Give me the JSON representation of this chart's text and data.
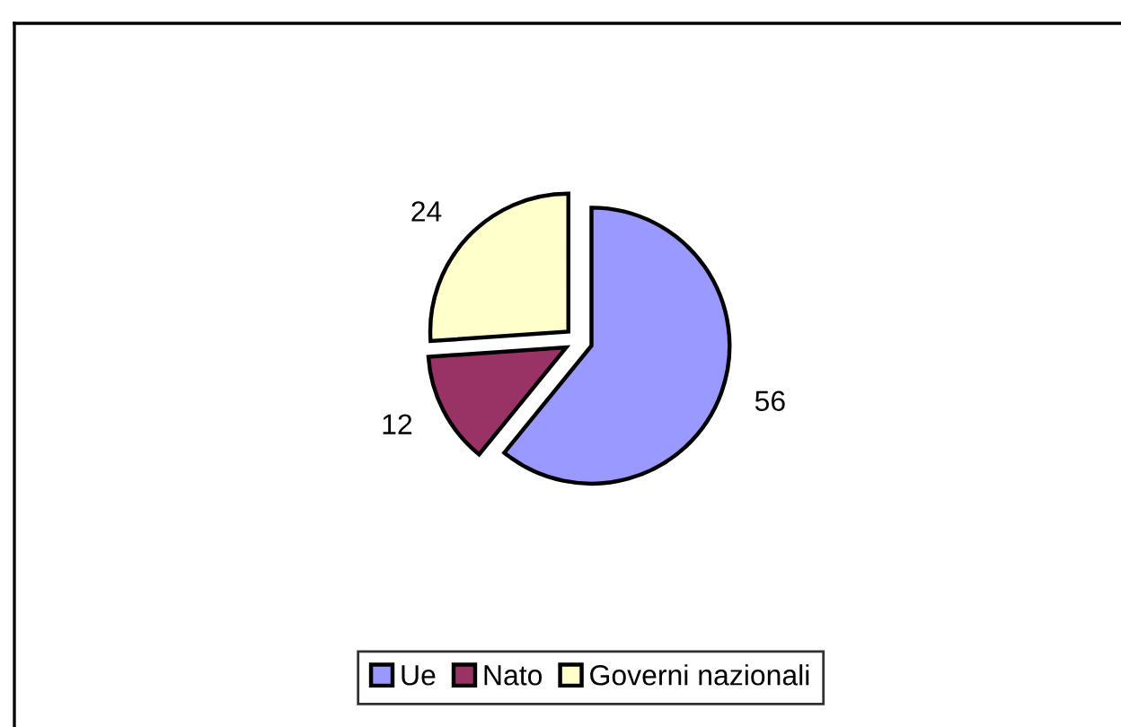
{
  "chart_data": {
    "type": "pie",
    "categories": [
      "Ue",
      "Nato",
      "Governi nazionali"
    ],
    "values": [
      56,
      12,
      24
    ],
    "colors": [
      "#9999ff",
      "#993366",
      "#ffffcc"
    ],
    "data_labels": true,
    "legend": "bottom"
  }
}
